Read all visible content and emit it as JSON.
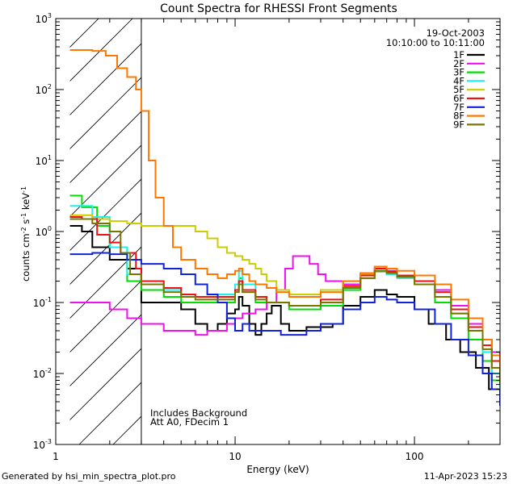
{
  "chart_data": {
    "type": "line",
    "title": "Count Spectra for RHESSI Front Segments",
    "xlabel": "Energy (keV)",
    "ylabel_parts": [
      "counts cm",
      "-2",
      " s",
      "-1",
      " keV",
      "-1"
    ],
    "xscale": "log",
    "yscale": "log",
    "xlim": [
      1,
      300
    ],
    "ylim": [
      0.001,
      1000
    ],
    "x_ticks": [
      {
        "v": 1,
        "label": "1"
      },
      {
        "v": 10,
        "label": "10"
      },
      {
        "v": 100,
        "label": "100"
      }
    ],
    "y_ticks": [
      {
        "v": 0.001,
        "base": "10",
        "exp": "-3"
      },
      {
        "v": 0.01,
        "base": "10",
        "exp": "-2"
      },
      {
        "v": 0.1,
        "base": "10",
        "exp": "-1"
      },
      {
        "v": 1,
        "base": "10",
        "exp": "0"
      },
      {
        "v": 10,
        "base": "10",
        "exp": "1"
      },
      {
        "v": 100,
        "base": "10",
        "exp": "2"
      },
      {
        "v": 1000,
        "base": "10",
        "exp": "3"
      }
    ],
    "hatch_region": {
      "x_from": 1.2,
      "x_to": 3.0
    },
    "legend_header": [
      "19-Oct-2003",
      "10:10:00 to 10:11:00"
    ],
    "annotations": [
      "Includes Background",
      "Att A0, FDecim 1"
    ],
    "footer_left": "Generated by hsi_min_spectra_plot.pro",
    "footer_right": "11-Apr-2023 15:23",
    "series": [
      {
        "name": "1F",
        "color": "#000000",
        "points": [
          [
            1.2,
            1.2
          ],
          [
            1.4,
            1.0
          ],
          [
            1.6,
            0.6
          ],
          [
            2.0,
            0.4
          ],
          [
            2.5,
            0.3
          ],
          [
            3.0,
            0.1
          ],
          [
            4.0,
            0.1
          ],
          [
            5.0,
            0.08
          ],
          [
            6.0,
            0.05
          ],
          [
            7.0,
            0.04
          ],
          [
            8.0,
            0.05
          ],
          [
            9.0,
            0.07
          ],
          [
            10.0,
            0.08
          ],
          [
            10.5,
            0.12
          ],
          [
            11.0,
            0.09
          ],
          [
            12.0,
            0.05
          ],
          [
            13.0,
            0.035
          ],
          [
            14.0,
            0.05
          ],
          [
            15.0,
            0.07
          ],
          [
            16.0,
            0.09
          ],
          [
            18.0,
            0.05
          ],
          [
            20.0,
            0.04
          ],
          [
            25.0,
            0.045
          ],
          [
            30.0,
            0.045
          ],
          [
            35.0,
            0.05
          ],
          [
            40.0,
            0.09
          ],
          [
            50.0,
            0.12
          ],
          [
            60.0,
            0.15
          ],
          [
            70.0,
            0.13
          ],
          [
            80.0,
            0.12
          ],
          [
            100.0,
            0.08
          ],
          [
            120.0,
            0.05
          ],
          [
            150.0,
            0.03
          ],
          [
            180.0,
            0.02
          ],
          [
            220.0,
            0.012
          ],
          [
            260.0,
            0.006
          ],
          [
            300.0,
            0.004
          ]
        ]
      },
      {
        "name": "2F",
        "color": "#ee11ee",
        "points": [
          [
            1.2,
            0.1
          ],
          [
            1.6,
            0.1
          ],
          [
            2.0,
            0.08
          ],
          [
            2.5,
            0.06
          ],
          [
            3.0,
            0.05
          ],
          [
            4.0,
            0.04
          ],
          [
            5.0,
            0.04
          ],
          [
            6.0,
            0.035
          ],
          [
            7.0,
            0.04
          ],
          [
            9.0,
            0.05
          ],
          [
            10.0,
            0.06
          ],
          [
            11.0,
            0.07
          ],
          [
            13.0,
            0.08
          ],
          [
            15.0,
            0.1
          ],
          [
            17.0,
            0.15
          ],
          [
            19.0,
            0.3
          ],
          [
            21.0,
            0.45
          ],
          [
            23.0,
            0.45
          ],
          [
            26.0,
            0.35
          ],
          [
            29.0,
            0.25
          ],
          [
            32.0,
            0.2
          ],
          [
            40.0,
            0.18
          ],
          [
            50.0,
            0.25
          ],
          [
            60.0,
            0.3
          ],
          [
            70.0,
            0.28
          ],
          [
            80.0,
            0.24
          ],
          [
            100.0,
            0.2
          ],
          [
            130.0,
            0.15
          ],
          [
            160.0,
            0.09
          ],
          [
            200.0,
            0.05
          ],
          [
            240.0,
            0.03
          ],
          [
            270.0,
            0.02
          ],
          [
            300.0,
            0.015
          ]
        ]
      },
      {
        "name": "3F",
        "color": "#00dd00",
        "points": [
          [
            1.2,
            3.2
          ],
          [
            1.4,
            2.2
          ],
          [
            1.7,
            1.2
          ],
          [
            2.0,
            0.6
          ],
          [
            2.5,
            0.2
          ],
          [
            3.0,
            0.15
          ],
          [
            4.0,
            0.12
          ],
          [
            5.0,
            0.1
          ],
          [
            6.0,
            0.1
          ],
          [
            8.0,
            0.1
          ],
          [
            10.0,
            0.15
          ],
          [
            10.5,
            0.22
          ],
          [
            11.0,
            0.14
          ],
          [
            13.0,
            0.1
          ],
          [
            15.0,
            0.1
          ],
          [
            20.0,
            0.08
          ],
          [
            30.0,
            0.09
          ],
          [
            40.0,
            0.15
          ],
          [
            50.0,
            0.22
          ],
          [
            60.0,
            0.28
          ],
          [
            70.0,
            0.26
          ],
          [
            80.0,
            0.23
          ],
          [
            100.0,
            0.18
          ],
          [
            130.0,
            0.1
          ],
          [
            160.0,
            0.06
          ],
          [
            200.0,
            0.03
          ],
          [
            240.0,
            0.015
          ],
          [
            270.0,
            0.008
          ],
          [
            300.0,
            0.005
          ]
        ]
      },
      {
        "name": "4F",
        "color": "#22eeee",
        "points": [
          [
            1.2,
            2.3
          ],
          [
            1.6,
            1.6
          ],
          [
            2.0,
            0.6
          ],
          [
            2.5,
            0.25
          ],
          [
            3.0,
            0.2
          ],
          [
            4.0,
            0.15
          ],
          [
            5.0,
            0.12
          ],
          [
            6.0,
            0.12
          ],
          [
            8.0,
            0.13
          ],
          [
            10.0,
            0.18
          ],
          [
            10.5,
            0.28
          ],
          [
            11.0,
            0.18
          ],
          [
            13.0,
            0.12
          ],
          [
            15.0,
            0.1
          ],
          [
            20.0,
            0.09
          ],
          [
            30.0,
            0.1
          ],
          [
            40.0,
            0.16
          ],
          [
            50.0,
            0.22
          ],
          [
            60.0,
            0.27
          ],
          [
            70.0,
            0.25
          ],
          [
            80.0,
            0.22
          ],
          [
            100.0,
            0.18
          ],
          [
            130.0,
            0.12
          ],
          [
            160.0,
            0.07
          ],
          [
            200.0,
            0.04
          ],
          [
            240.0,
            0.02
          ],
          [
            270.0,
            0.01
          ],
          [
            300.0,
            0.006
          ]
        ]
      },
      {
        "name": "5F",
        "color": "#cccc00",
        "points": [
          [
            1.2,
            1.7
          ],
          [
            1.6,
            1.5
          ],
          [
            2.0,
            1.4
          ],
          [
            2.5,
            1.3
          ],
          [
            3.0,
            1.2
          ],
          [
            4.0,
            1.2
          ],
          [
            5.0,
            1.2
          ],
          [
            6.0,
            1.0
          ],
          [
            7.0,
            0.8
          ],
          [
            8.0,
            0.6
          ],
          [
            9.0,
            0.5
          ],
          [
            10.0,
            0.45
          ],
          [
            11.0,
            0.4
          ],
          [
            12.0,
            0.35
          ],
          [
            13.0,
            0.3
          ],
          [
            14.0,
            0.25
          ],
          [
            15.0,
            0.2
          ],
          [
            17.0,
            0.15
          ],
          [
            20.0,
            0.13
          ],
          [
            25.0,
            0.13
          ],
          [
            30.0,
            0.15
          ],
          [
            40.0,
            0.2
          ],
          [
            50.0,
            0.25
          ],
          [
            60.0,
            0.28
          ],
          [
            70.0,
            0.26
          ],
          [
            80.0,
            0.23
          ],
          [
            100.0,
            0.18
          ],
          [
            130.0,
            0.12
          ],
          [
            160.0,
            0.07
          ],
          [
            200.0,
            0.04
          ],
          [
            240.0,
            0.025
          ],
          [
            270.0,
            0.015
          ],
          [
            300.0,
            0.01
          ]
        ]
      },
      {
        "name": "6F",
        "color": "#ee1111",
        "points": [
          [
            1.2,
            1.6
          ],
          [
            1.4,
            1.5
          ],
          [
            1.7,
            0.9
          ],
          [
            2.0,
            0.7
          ],
          [
            2.3,
            0.5
          ],
          [
            2.8,
            0.3
          ],
          [
            3.0,
            0.2
          ],
          [
            4.0,
            0.16
          ],
          [
            5.0,
            0.13
          ],
          [
            6.0,
            0.12
          ],
          [
            8.0,
            0.12
          ],
          [
            10.0,
            0.15
          ],
          [
            10.5,
            0.2
          ],
          [
            11.0,
            0.15
          ],
          [
            13.0,
            0.12
          ],
          [
            15.0,
            0.1
          ],
          [
            20.0,
            0.09
          ],
          [
            30.0,
            0.11
          ],
          [
            40.0,
            0.17
          ],
          [
            50.0,
            0.24
          ],
          [
            60.0,
            0.3
          ],
          [
            70.0,
            0.27
          ],
          [
            80.0,
            0.24
          ],
          [
            100.0,
            0.2
          ],
          [
            130.0,
            0.14
          ],
          [
            160.0,
            0.08
          ],
          [
            200.0,
            0.045
          ],
          [
            240.0,
            0.025
          ],
          [
            270.0,
            0.015
          ],
          [
            300.0,
            0.009
          ]
        ]
      },
      {
        "name": "7F",
        "color": "#1122dd",
        "points": [
          [
            1.2,
            0.48
          ],
          [
            1.6,
            0.5
          ],
          [
            2.0,
            0.48
          ],
          [
            2.5,
            0.4
          ],
          [
            3.0,
            0.35
          ],
          [
            4.0,
            0.3
          ],
          [
            5.0,
            0.25
          ],
          [
            6.0,
            0.18
          ],
          [
            7.0,
            0.13
          ],
          [
            8.0,
            0.1
          ],
          [
            9.0,
            0.06
          ],
          [
            10.0,
            0.04
          ],
          [
            11.0,
            0.05
          ],
          [
            12.0,
            0.04
          ],
          [
            14.0,
            0.04
          ],
          [
            16.0,
            0.04
          ],
          [
            18.0,
            0.035
          ],
          [
            20.0,
            0.035
          ],
          [
            25.0,
            0.04
          ],
          [
            30.0,
            0.05
          ],
          [
            40.0,
            0.08
          ],
          [
            50.0,
            0.1
          ],
          [
            60.0,
            0.12
          ],
          [
            70.0,
            0.11
          ],
          [
            80.0,
            0.1
          ],
          [
            100.0,
            0.08
          ],
          [
            130.0,
            0.05
          ],
          [
            160.0,
            0.03
          ],
          [
            200.0,
            0.018
          ],
          [
            240.0,
            0.01
          ],
          [
            270.0,
            0.006
          ],
          [
            300.0,
            0.0035
          ]
        ]
      },
      {
        "name": "8F",
        "color": "#ff7700",
        "points": [
          [
            1.2,
            360
          ],
          [
            1.6,
            350
          ],
          [
            1.9,
            300
          ],
          [
            2.2,
            200
          ],
          [
            2.5,
            150
          ],
          [
            2.8,
            100
          ],
          [
            3.0,
            50
          ],
          [
            3.3,
            10
          ],
          [
            3.6,
            3
          ],
          [
            4.0,
            1.2
          ],
          [
            4.5,
            0.6
          ],
          [
            5.0,
            0.4
          ],
          [
            6.0,
            0.3
          ],
          [
            7.0,
            0.25
          ],
          [
            8.0,
            0.22
          ],
          [
            9.0,
            0.25
          ],
          [
            10.0,
            0.28
          ],
          [
            10.5,
            0.3
          ],
          [
            11.0,
            0.25
          ],
          [
            12.0,
            0.2
          ],
          [
            13.0,
            0.18
          ],
          [
            15.0,
            0.16
          ],
          [
            17.0,
            0.14
          ],
          [
            20.0,
            0.12
          ],
          [
            25.0,
            0.12
          ],
          [
            30.0,
            0.14
          ],
          [
            40.0,
            0.2
          ],
          [
            50.0,
            0.26
          ],
          [
            60.0,
            0.32
          ],
          [
            70.0,
            0.3
          ],
          [
            80.0,
            0.28
          ],
          [
            100.0,
            0.24
          ],
          [
            130.0,
            0.18
          ],
          [
            160.0,
            0.11
          ],
          [
            200.0,
            0.06
          ],
          [
            240.0,
            0.03
          ],
          [
            270.0,
            0.018
          ],
          [
            300.0,
            0.01
          ]
        ]
      },
      {
        "name": "9F",
        "color": "#777700",
        "points": [
          [
            1.2,
            1.5
          ],
          [
            1.6,
            1.3
          ],
          [
            2.0,
            1.0
          ],
          [
            2.3,
            0.5
          ],
          [
            2.6,
            0.25
          ],
          [
            3.0,
            0.18
          ],
          [
            4.0,
            0.14
          ],
          [
            5.0,
            0.12
          ],
          [
            6.0,
            0.11
          ],
          [
            8.0,
            0.11
          ],
          [
            10.0,
            0.14
          ],
          [
            10.5,
            0.18
          ],
          [
            11.0,
            0.14
          ],
          [
            13.0,
            0.11
          ],
          [
            15.0,
            0.1
          ],
          [
            20.0,
            0.09
          ],
          [
            30.0,
            0.1
          ],
          [
            40.0,
            0.16
          ],
          [
            50.0,
            0.22
          ],
          [
            60.0,
            0.28
          ],
          [
            70.0,
            0.26
          ],
          [
            80.0,
            0.23
          ],
          [
            100.0,
            0.18
          ],
          [
            130.0,
            0.12
          ],
          [
            160.0,
            0.07
          ],
          [
            200.0,
            0.04
          ],
          [
            240.0,
            0.022
          ],
          [
            270.0,
            0.012
          ],
          [
            300.0,
            0.007
          ]
        ]
      }
    ]
  }
}
